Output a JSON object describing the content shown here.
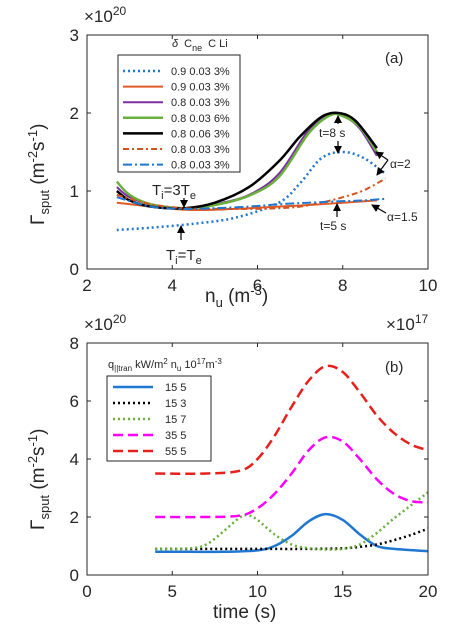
{
  "chart_data": [
    {
      "type": "line",
      "panel_label": "(a)",
      "xlabel_main": "n",
      "xlabel_sub": "u",
      "xlabel_unit_pre": " (m",
      "xlabel_unit_sup": "-3",
      "xlabel_unit_post": ")",
      "ylabel_main": "Γ",
      "ylabel_sub": "sput",
      "ylabel_unit_pre": " (m",
      "ylabel_unit_sup1": "-2",
      "ylabel_unit_mid": "s",
      "ylabel_unit_sup2": "-1",
      "ylabel_unit_post": ")",
      "y_multiplier_base": "×10",
      "y_multiplier_exp": "20",
      "xlim": [
        2,
        10
      ],
      "ylim": [
        0,
        3
      ],
      "xticks": [
        2,
        4,
        6,
        8,
        10
      ],
      "yticks": [
        0,
        1,
        2,
        3
      ],
      "xtick_labels": [
        "2",
        "4",
        "6",
        "8",
        "10"
      ],
      "ytick_labels": [
        "0",
        "1",
        "2",
        "3"
      ],
      "legend_header": [
        "δ",
        "C",
        "ne",
        "C Li"
      ],
      "series": [
        {
          "name": "0.9 0.03 3%",
          "color": "#1f77d0",
          "dash": "2,3",
          "width": 2.5,
          "x": [
            2.7,
            3.5,
            4.5,
            5.5,
            6.5,
            7.0,
            7.5,
            8.0,
            8.5,
            9.0
          ],
          "y": [
            0.5,
            0.53,
            0.58,
            0.66,
            0.85,
            1.1,
            1.42,
            1.5,
            1.42,
            1.22
          ]
        },
        {
          "name": "0.9 0.03 3%",
          "color": "#e05a28",
          "dash": "",
          "width": 2,
          "x": [
            2.7,
            3.5,
            4.3,
            5.0,
            5.8,
            6.5,
            7.2,
            8.0,
            8.8
          ],
          "y": [
            0.85,
            0.8,
            0.76,
            0.76,
            0.78,
            0.8,
            0.82,
            0.85,
            0.88
          ]
        },
        {
          "name": "0.8 0.03 3%",
          "color": "#7b2fa0",
          "dash": "",
          "width": 2,
          "x": [
            2.7,
            3.0,
            3.5,
            4.3,
            5.0,
            5.8,
            6.5,
            7.2,
            7.7,
            8.0,
            8.4,
            8.8
          ],
          "y": [
            1.05,
            0.92,
            0.83,
            0.78,
            0.83,
            0.95,
            1.22,
            1.78,
            1.98,
            1.97,
            1.8,
            1.45
          ]
        },
        {
          "name": "0.8 0.03 6%",
          "color": "#6ab03d",
          "dash": "",
          "width": 2.5,
          "x": [
            2.7,
            3.0,
            3.5,
            4.3,
            5.0,
            5.8,
            6.5,
            7.2,
            7.7,
            8.0,
            8.4,
            8.8
          ],
          "y": [
            1.12,
            0.95,
            0.83,
            0.78,
            0.82,
            0.94,
            1.18,
            1.74,
            1.97,
            1.96,
            1.82,
            1.5
          ]
        },
        {
          "name": "0.8 0.06 3%",
          "color": "#000000",
          "dash": "",
          "width": 2.5,
          "x": [
            2.7,
            3.0,
            3.5,
            4.3,
            5.0,
            5.8,
            6.5,
            7.0,
            7.5,
            7.9,
            8.3,
            8.8
          ],
          "y": [
            1.0,
            0.88,
            0.8,
            0.78,
            0.85,
            1.05,
            1.38,
            1.7,
            1.95,
            2.0,
            1.9,
            1.55
          ]
        },
        {
          "name": "0.8 0.03 3%",
          "color": "#d4541f",
          "dash": "6,3,2,3",
          "width": 2,
          "x": [
            2.7,
            3.5,
            4.3,
            5.0,
            5.8,
            6.5,
            7.0,
            7.5,
            8.0,
            8.5,
            9.0
          ],
          "y": [
            0.95,
            0.83,
            0.78,
            0.77,
            0.77,
            0.78,
            0.8,
            0.85,
            0.92,
            1.01,
            1.16
          ]
        },
        {
          "name": "0.8 0.03 3%",
          "color": "#1f77d0",
          "dash": "9,3,2,3",
          "width": 2,
          "x": [
            2.7,
            3.5,
            4.3,
            5.0,
            5.8,
            6.5,
            7.2,
            8.0,
            8.5,
            9.0
          ],
          "y": [
            0.92,
            0.8,
            0.77,
            0.78,
            0.8,
            0.83,
            0.85,
            0.87,
            0.88,
            0.9
          ]
        }
      ],
      "annotations": [
        {
          "pre": "T",
          "sub": "i",
          "mid": "=3T",
          "sub2": "e"
        },
        {
          "pre": "T",
          "sub": "i",
          "mid": "=T",
          "sub2": "e"
        },
        {
          "text": "t=8 s"
        },
        {
          "text": "t=5 s"
        },
        {
          "text": "α=2"
        },
        {
          "text": "α=1.5"
        }
      ]
    },
    {
      "type": "line",
      "panel_label": "(b)",
      "xlabel": "time (s)",
      "ylabel_main": "Γ",
      "ylabel_sub": "sput",
      "ylabel_unit_pre": " (m",
      "ylabel_unit_sup1": "-2",
      "ylabel_unit_mid": "s",
      "ylabel_unit_sup2": "-1",
      "ylabel_unit_post": ")",
      "y_multiplier_base": "×10",
      "y_multiplier_exp": "20",
      "x_multiplier_base": "×10",
      "x_multiplier_exp": "17",
      "xlim": [
        0,
        20
      ],
      "ylim": [
        0,
        8
      ],
      "xticks": [
        0,
        5,
        10,
        15,
        20
      ],
      "yticks": [
        0,
        2,
        4,
        6,
        8
      ],
      "xtick_labels": [
        "0",
        "5",
        "10",
        "15",
        "20"
      ],
      "ytick_labels": [
        "0",
        "2",
        "4",
        "6",
        "8"
      ],
      "legend_header": [
        "q",
        "||tran",
        " kW/m",
        "2",
        "  n",
        "u",
        " 10",
        "17",
        "m",
        "-3"
      ],
      "series": [
        {
          "name": "15    5",
          "color": "#1f77d0",
          "dash": "",
          "width": 2.5,
          "x": [
            4,
            6,
            8,
            10,
            11,
            12,
            13,
            14,
            15,
            16,
            17,
            18,
            20
          ],
          "y": [
            0.8,
            0.8,
            0.8,
            0.85,
            1.0,
            1.35,
            1.85,
            2.1,
            1.9,
            1.4,
            1.0,
            0.9,
            0.82
          ]
        },
        {
          "name": "15    3",
          "color": "#000000",
          "dash": "2,3",
          "width": 2.5,
          "x": [
            4,
            7,
            10,
            13,
            15,
            16,
            17,
            18,
            19,
            20
          ],
          "y": [
            0.9,
            0.9,
            0.9,
            0.9,
            0.92,
            0.97,
            1.05,
            1.2,
            1.38,
            1.6
          ]
        },
        {
          "name": "15    7",
          "color": "#6ab03d",
          "dash": "2,3",
          "width": 2.5,
          "x": [
            4,
            6,
            7,
            8,
            9,
            9.5,
            10,
            11,
            12,
            13,
            14,
            15,
            16,
            17,
            18,
            19,
            20
          ],
          "y": [
            0.9,
            0.92,
            1.05,
            1.5,
            2.0,
            2.05,
            1.9,
            1.4,
            1.05,
            0.92,
            0.88,
            0.9,
            1.05,
            1.45,
            1.95,
            2.4,
            2.85
          ]
        },
        {
          "name": "35    5",
          "color": "#ff00ff",
          "dash": "10,5",
          "width": 2.5,
          "x": [
            4,
            7,
            9,
            10,
            11,
            12,
            13,
            14,
            15,
            16,
            17,
            18,
            19,
            20
          ],
          "y": [
            2.0,
            2.0,
            2.05,
            2.3,
            2.8,
            3.5,
            4.3,
            4.75,
            4.6,
            4.0,
            3.3,
            2.8,
            2.55,
            2.5
          ]
        },
        {
          "name": "55    5",
          "color": "#e8201c",
          "dash": "10,5",
          "width": 2.5,
          "x": [
            4,
            7,
            9,
            10,
            11,
            12,
            13,
            14,
            15,
            16,
            17,
            18,
            19,
            20
          ],
          "y": [
            3.5,
            3.5,
            3.6,
            4.0,
            4.8,
            5.8,
            6.7,
            7.2,
            7.0,
            6.3,
            5.5,
            4.9,
            4.5,
            4.3
          ]
        }
      ]
    }
  ]
}
